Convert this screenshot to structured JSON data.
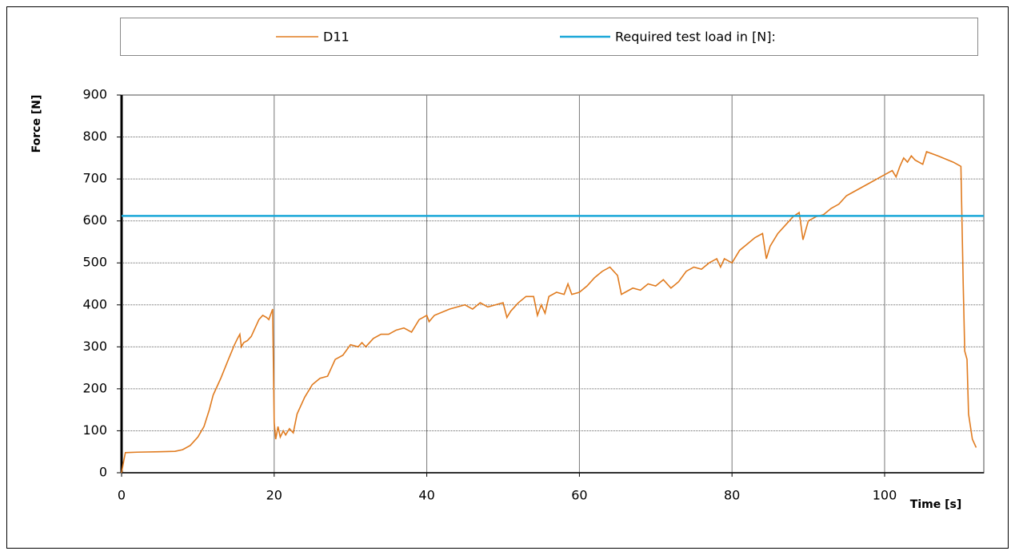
{
  "chart_data": {
    "type": "line",
    "x_label": "Time [s]",
    "y_label": "Force [N]",
    "xlim": [
      0,
      113
    ],
    "ylim": [
      0,
      900
    ],
    "xticks": [
      0,
      20,
      40,
      60,
      80,
      100
    ],
    "yticks": [
      0,
      100,
      200,
      300,
      400,
      500,
      600,
      700,
      800,
      900
    ],
    "grid": true,
    "series": [
      {
        "name": "D11",
        "color": "#e07b1f",
        "x": [
          0,
          0.3,
          0.5,
          2,
          5,
          7,
          8,
          9,
          10,
          10.8,
          11.5,
          12,
          13,
          14,
          14.8,
          15.2,
          15.5,
          15.7,
          16,
          16.5,
          17,
          17.5,
          18,
          18.5,
          19,
          19.3,
          19.6,
          19.8,
          20,
          20.2,
          20.5,
          20.8,
          21.2,
          21.5,
          22,
          22.5,
          23,
          24,
          25,
          26,
          27,
          28,
          29,
          30,
          31,
          31.5,
          32,
          33,
          34,
          35,
          36,
          37,
          38,
          39,
          40,
          40.3,
          41,
          43,
          45,
          46,
          47,
          48,
          49,
          50,
          50.5,
          51,
          52,
          53,
          54,
          54.5,
          55,
          55.5,
          56,
          57,
          58,
          58.5,
          59,
          60,
          61,
          62,
          63,
          64,
          65,
          65.5,
          66,
          67,
          68,
          69,
          70,
          71,
          72,
          73,
          74,
          75,
          76,
          77,
          78,
          78.5,
          79,
          80,
          81,
          82,
          83,
          84,
          84.5,
          85,
          86,
          87,
          88,
          88.8,
          89,
          89.3,
          90,
          91,
          92,
          93,
          94,
          95,
          96,
          97,
          98,
          99,
          100,
          101,
          101.5,
          102,
          102.5,
          103,
          103.5,
          104,
          105,
          105.5,
          107,
          109,
          110,
          110.3,
          110.5,
          110.8,
          111,
          111.5,
          112
        ],
        "values": [
          0,
          30,
          48,
          49,
          50,
          51,
          55,
          65,
          85,
          110,
          150,
          185,
          225,
          270,
          305,
          320,
          330,
          300,
          310,
          315,
          325,
          345,
          365,
          375,
          370,
          365,
          380,
          390,
          120,
          80,
          110,
          85,
          100,
          90,
          105,
          95,
          140,
          180,
          210,
          225,
          230,
          270,
          280,
          305,
          300,
          310,
          300,
          320,
          330,
          330,
          340,
          345,
          335,
          365,
          375,
          360,
          375,
          390,
          400,
          390,
          405,
          395,
          400,
          405,
          370,
          385,
          405,
          420,
          420,
          375,
          400,
          380,
          420,
          430,
          425,
          450,
          425,
          430,
          445,
          465,
          480,
          490,
          470,
          425,
          430,
          440,
          435,
          450,
          445,
          460,
          440,
          455,
          480,
          490,
          485,
          500,
          510,
          490,
          510,
          500,
          530,
          545,
          560,
          570,
          510,
          540,
          570,
          590,
          610,
          620,
          595,
          555,
          600,
          610,
          615,
          630,
          640,
          660,
          670,
          680,
          690,
          700,
          710,
          720,
          705,
          730,
          750,
          740,
          755,
          745,
          735,
          765,
          755,
          740,
          730,
          450,
          290,
          270,
          140,
          80,
          60
        ]
      },
      {
        "name": "Required test load in [N]:",
        "color": "#1aa7d8",
        "x": [
          0,
          113
        ],
        "values": [
          612,
          612
        ]
      }
    ]
  }
}
